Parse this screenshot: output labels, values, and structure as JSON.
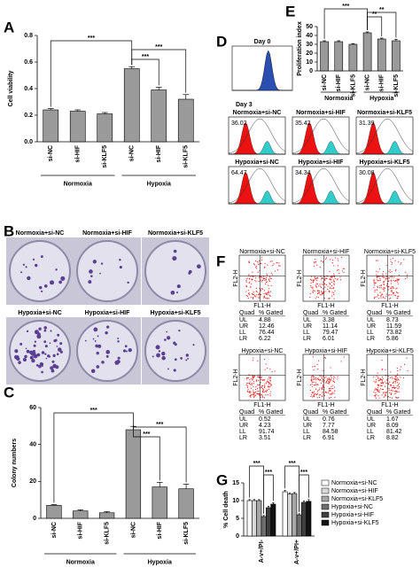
{
  "panel_letters": [
    "A",
    "B",
    "C",
    "D",
    "E",
    "F",
    "G"
  ],
  "chart_data": [
    {
      "type": "bar",
      "y_label": "Cell viability",
      "categories": [
        "si-NC",
        "si-HIF",
        "si-KLF5",
        "si-NC",
        "si-HIF",
        "si-KLF5"
      ],
      "values": [
        0.24,
        0.23,
        0.21,
        0.55,
        0.39,
        0.32
      ],
      "errors": [
        0.01,
        0.01,
        0.01,
        0.015,
        0.02,
        0.035
      ],
      "color": "#9a9a9a",
      "ylim": [
        0,
        0.8
      ],
      "yticks": [
        {
          "value": 0,
          "label": "0.0"
        },
        0.2,
        0.4,
        0.6,
        0.8
      ],
      "groups": [
        "Normoxia",
        "Hypoxia"
      ],
      "annotations": [
        "***",
        "***",
        "***"
      ]
    },
    {
      "type": "bar",
      "y_label": "Colony numbers",
      "categories": [
        "si-NC",
        "si-HIF",
        "si-KLF5",
        "si-NC",
        "si-HIF",
        "si-KLF5"
      ],
      "values": [
        7,
        4,
        3,
        48,
        17,
        16
      ],
      "errors": [
        0.5,
        0.6,
        0.6,
        1.8,
        2.5,
        2.5
      ],
      "color": "#9a9a9a",
      "ylim": [
        0,
        60
      ],
      "yticks": [
        0,
        20,
        40,
        60
      ],
      "groups": [
        "Normoxia",
        "Hypoxia"
      ],
      "annotations": [
        "***",
        "***",
        "***"
      ]
    },
    {
      "type": "bar",
      "y_label": "Proliferation index",
      "categories": [
        "si-NC",
        "si-HIF",
        "si-KLF5",
        "si-NC",
        "si-HIF",
        "si-KLF5"
      ],
      "values": [
        33,
        33,
        30,
        43,
        36,
        34
      ],
      "errors": [
        1,
        1,
        0.8,
        1,
        1,
        1.5
      ],
      "color": "#9a9a9a",
      "ylim": [
        0,
        50
      ],
      "yticks": [
        0,
        10,
        20,
        30,
        40,
        50
      ],
      "groups": [
        "Normoxia",
        "Hypoxia"
      ],
      "annotations": [
        "***",
        "**",
        "**"
      ]
    },
    {
      "type": "bar",
      "y_label": "% Cell death",
      "categories": [
        "A-v+/PI-",
        "A-v+/PI+"
      ],
      "series": [
        {
          "name": "Normoxia+si-NC",
          "color": "#ffffff",
          "values": [
            10,
            12.5
          ],
          "errors": [
            0.3,
            0.4
          ]
        },
        {
          "name": "Normoxia+si-HIF",
          "color": "#d9d9d9",
          "values": [
            10,
            11.8
          ],
          "errors": [
            0.3,
            0.4
          ]
        },
        {
          "name": "Normoxia+si-KLF5",
          "color": "#a6a6a6",
          "values": [
            10,
            12
          ],
          "errors": [
            0.3,
            0.3
          ]
        },
        {
          "name": "Hypoxia+si-NC",
          "color": "#6e6e6e",
          "values": [
            5.5,
            6
          ],
          "errors": [
            0.3,
            0.3
          ]
        },
        {
          "name": "Hypoxia+si-HIF",
          "color": "#3f3f3f",
          "values": [
            8,
            9.5
          ],
          "errors": [
            0.4,
            0.4
          ]
        },
        {
          "name": "Hypoxia+si-KLF5",
          "color": "#111111",
          "values": [
            9,
            9.8
          ],
          "errors": [
            0.4,
            0.5
          ]
        }
      ],
      "ylim": [
        0,
        15
      ],
      "yticks": [
        0,
        5,
        10,
        15
      ],
      "legend": "right",
      "annotations": [
        "***",
        "***",
        "***",
        "***"
      ]
    }
  ],
  "colony_photos": {
    "labels": [
      "Normoxia+si-NC",
      "Normoxia+si-HIF",
      "Normoxia+si-KLF5",
      "Hypoxia+si-NC",
      "Hypoxia+si-HIF",
      "Hypoxia+si-KLF5"
    ]
  },
  "proliferation_flow": {
    "day0": "Day 0",
    "day3": "Day 3",
    "plots": [
      {
        "label": "Normoxia+si-NC",
        "value": "36.02"
      },
      {
        "label": "Normoxia+si-HIF",
        "value": "35.42"
      },
      {
        "label": "Normoxia+si-KLF5",
        "value": "31.39"
      },
      {
        "label": "Hypoxia+si-NC",
        "value": "64.47"
      },
      {
        "label": "Hypoxia+si-HIF",
        "value": "34.34"
      },
      {
        "label": "Hypoxia+si-KLF5",
        "value": "30.08"
      }
    ]
  },
  "apoptosis_flow": {
    "x_axis": "FL1-H",
    "y_axis": "FL2-H",
    "columns": [
      "Quad",
      "% Gated"
    ],
    "plots": [
      {
        "label": "Normoxia+si-NC",
        "rows": [
          [
            "UL",
            "4.88"
          ],
          [
            "UR",
            "12.46"
          ],
          [
            "LL",
            "76.44"
          ],
          [
            "LR",
            "6.22"
          ]
        ]
      },
      {
        "label": "Normoxia+si-HIF",
        "rows": [
          [
            "UL",
            "3.38"
          ],
          [
            "UR",
            "11.14"
          ],
          [
            "LL",
            "79.47"
          ],
          [
            "LR",
            "6.01"
          ]
        ]
      },
      {
        "label": "Normoxia+si-KLF5",
        "rows": [
          [
            "UL",
            "8.73"
          ],
          [
            "UR",
            "11.59"
          ],
          [
            "LL",
            "73.82"
          ],
          [
            "LR",
            "5.86"
          ]
        ]
      },
      {
        "label": "Hypoxia+si-NC",
        "rows": [
          [
            "UL",
            "0.52"
          ],
          [
            "UR",
            "4.23"
          ],
          [
            "LL",
            "91.74"
          ],
          [
            "LR",
            "3.51"
          ]
        ]
      },
      {
        "label": "Hypoxia+si-HIF",
        "rows": [
          [
            "UL",
            "0.76"
          ],
          [
            "UR",
            "7.77"
          ],
          [
            "LL",
            "84.58"
          ],
          [
            "LR",
            "6.91"
          ]
        ]
      },
      {
        "label": "Hypoxia+si-KLF5",
        "rows": [
          [
            "UL",
            "1.67"
          ],
          [
            "UR",
            "8.09"
          ],
          [
            "LL",
            "81.42"
          ],
          [
            "LR",
            "8.82"
          ]
        ]
      }
    ]
  }
}
